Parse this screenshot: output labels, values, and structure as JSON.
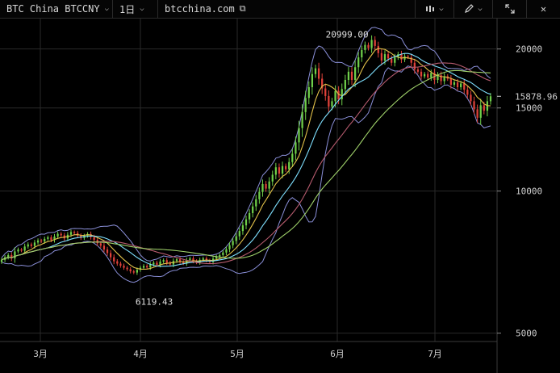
{
  "toolbar": {
    "symbol_label": "BTC China BTCCNY",
    "interval_label": "1日",
    "source_label": "btcchina.com",
    "chart_type_icon": "candles-icon",
    "draw_icon": "pencil-icon",
    "fullscreen_icon": "expand-icon"
  },
  "chart_data": {
    "type": "candlestick",
    "x_tick_labels": [
      "3月",
      "4月",
      "5月",
      "6月",
      "7月"
    ],
    "y_ticks": [
      5000,
      10000,
      15000,
      20000
    ],
    "y_tick_labels": [
      "5000",
      "10000",
      "15000",
      "20000"
    ],
    "ylim": [
      4800,
      23200
    ],
    "last_price": 15878.96,
    "last_price_label": "15878.96",
    "annotations": [
      {
        "label": "20999.00",
        "value": 20999
      },
      {
        "label": "6119.43",
        "value": 6119.43
      }
    ],
    "candles": [
      7150,
      7240,
      7320,
      7200,
      7450,
      7520,
      7480,
      7630,
      7710,
      7650,
      7780,
      7860,
      7820,
      7920,
      7980,
      7880,
      8010,
      8120,
      8060,
      7940,
      8080,
      8190,
      8150,
      8050,
      7960,
      8040,
      8110,
      7990,
      7880,
      7750,
      7660,
      7520,
      7390,
      7240,
      7100,
      7020,
      6950,
      6880,
      6830,
      6760,
      6720,
      6810,
      6880,
      6940,
      6890,
      6990,
      7050,
      6980,
      7090,
      7140,
      7050,
      6990,
      7110,
      7170,
      7080,
      7030,
      7140,
      7200,
      7110,
      7060,
      7150,
      7200,
      7130,
      7080,
      7190,
      7260,
      7320,
      7410,
      7530,
      7680,
      7840,
      8020,
      8230,
      8460,
      8710,
      8980,
      9280,
      9610,
      9960,
      10350,
      10120,
      10480,
      10830,
      11230,
      10890,
      11300,
      11120,
      11520,
      12000,
      12680,
      13600,
      14700,
      15750,
      16600,
      17700,
      18200,
      17300,
      16500,
      15900,
      15100,
      15500,
      16300,
      15650,
      16450,
      17200,
      17900,
      17200,
      18300,
      19200,
      19900,
      20400,
      20100,
      20900,
      20300,
      19600,
      18900,
      19500,
      19100,
      18700,
      19200,
      19500,
      19000,
      19300,
      19200,
      18700,
      18100,
      17900,
      17500,
      17700,
      17400,
      17800,
      17200,
      17600,
      17100,
      17500,
      17300,
      16800,
      17000,
      16600,
      16900,
      16400,
      16000,
      15500,
      14900,
      14300,
      15200,
      14800,
      15500,
      15878.96
    ],
    "series": [
      {
        "color": "#e3c24a",
        "period": 7
      },
      {
        "color": "#7fe0ff",
        "period": 15
      },
      {
        "color": "#b65b6e",
        "period": 30
      },
      {
        "color": "#9fd16a",
        "period": 45
      }
    ],
    "bollinger": {
      "color": "#8a8fd8",
      "period": 10,
      "mult": 2.2
    },
    "up_color": "#6fcf4a",
    "down_color": "#e0423a",
    "grid_color": "#2a2a2a"
  }
}
